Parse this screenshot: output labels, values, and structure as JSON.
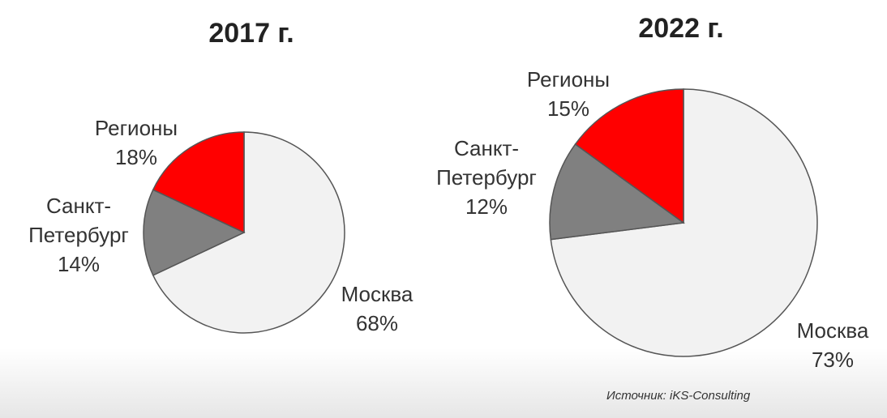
{
  "chart_data": [
    {
      "type": "pie",
      "title": "2017 г.",
      "categories": [
        "Москва",
        "Санкт-Петербург",
        "Регионы"
      ],
      "values": [
        68,
        14,
        18
      ],
      "value_labels": [
        "68%",
        "14%",
        "18%"
      ],
      "colors": [
        "#f2f2f2",
        "#808080",
        "#ff0000"
      ]
    },
    {
      "type": "pie",
      "title": "2022 г.",
      "categories": [
        "Москва",
        "Санкт-Петербург",
        "Регионы"
      ],
      "values": [
        73,
        12,
        15
      ],
      "value_labels": [
        "73%",
        "12%",
        "15%"
      ],
      "colors": [
        "#f2f2f2",
        "#808080",
        "#ff0000"
      ]
    }
  ],
  "source": "Источник: iKS-Consulting"
}
